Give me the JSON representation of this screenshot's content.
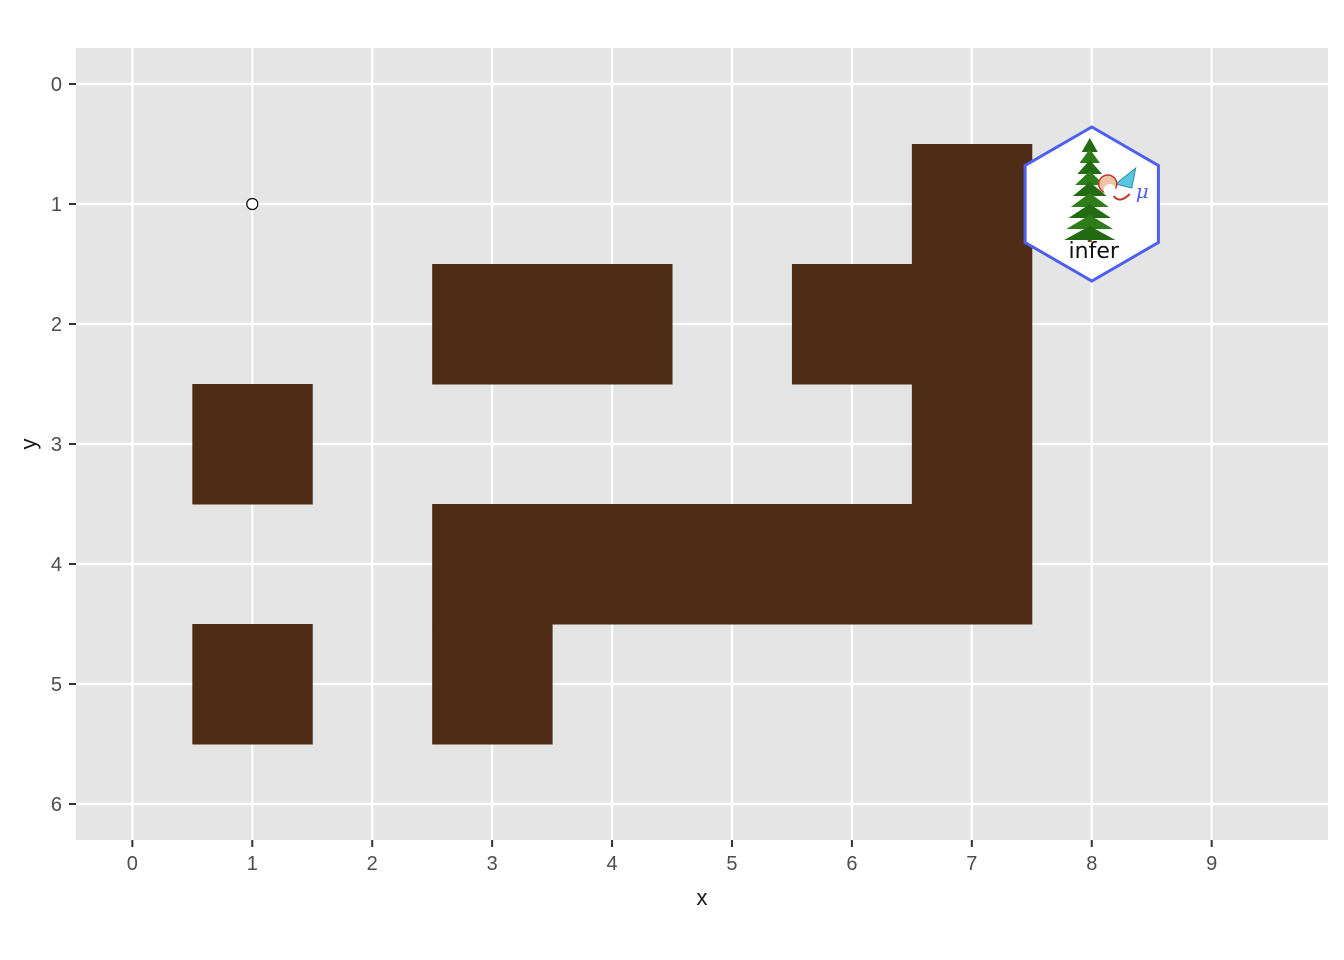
{
  "chart_data": {
    "type": "heatmap",
    "xlabel": "x",
    "ylabel": "y",
    "xlim": [
      -0.47,
      9.97
    ],
    "ylim": [
      0,
      6
    ],
    "y_reversed": true,
    "x_ticks": [
      0,
      1,
      2,
      3,
      4,
      5,
      6,
      7,
      8,
      9
    ],
    "y_ticks": [
      0,
      1,
      2,
      3,
      4,
      5,
      6
    ],
    "x_tick_labels": [
      "0",
      "1",
      "2",
      "3",
      "4",
      "5",
      "6",
      "7",
      "8",
      "9"
    ],
    "y_tick_labels": [
      "0",
      "1",
      "2",
      "3",
      "4",
      "5",
      "6"
    ],
    "grid": true,
    "tile_color": "#4e2c15",
    "tiles": [
      {
        "x": 7,
        "y": 1
      },
      {
        "x": 3,
        "y": 2
      },
      {
        "x": 4,
        "y": 2
      },
      {
        "x": 6,
        "y": 2
      },
      {
        "x": 7,
        "y": 2
      },
      {
        "x": 1,
        "y": 3
      },
      {
        "x": 7,
        "y": 3
      },
      {
        "x": 3,
        "y": 4
      },
      {
        "x": 4,
        "y": 4
      },
      {
        "x": 5,
        "y": 4
      },
      {
        "x": 6,
        "y": 4
      },
      {
        "x": 7,
        "y": 4
      },
      {
        "x": 1,
        "y": 5
      },
      {
        "x": 3,
        "y": 5
      }
    ],
    "points": [
      {
        "x": 1,
        "y": 1,
        "shape": "open-circle"
      }
    ],
    "logo": {
      "text": "infer",
      "x": 8,
      "y": 1,
      "border_color": "#4f5ff0"
    }
  },
  "colors": {
    "panel_background": "#e5e5e5",
    "grid_line": "#ffffff",
    "tick_text": "#4d4d4d",
    "title_text": "#1a1a1a"
  }
}
